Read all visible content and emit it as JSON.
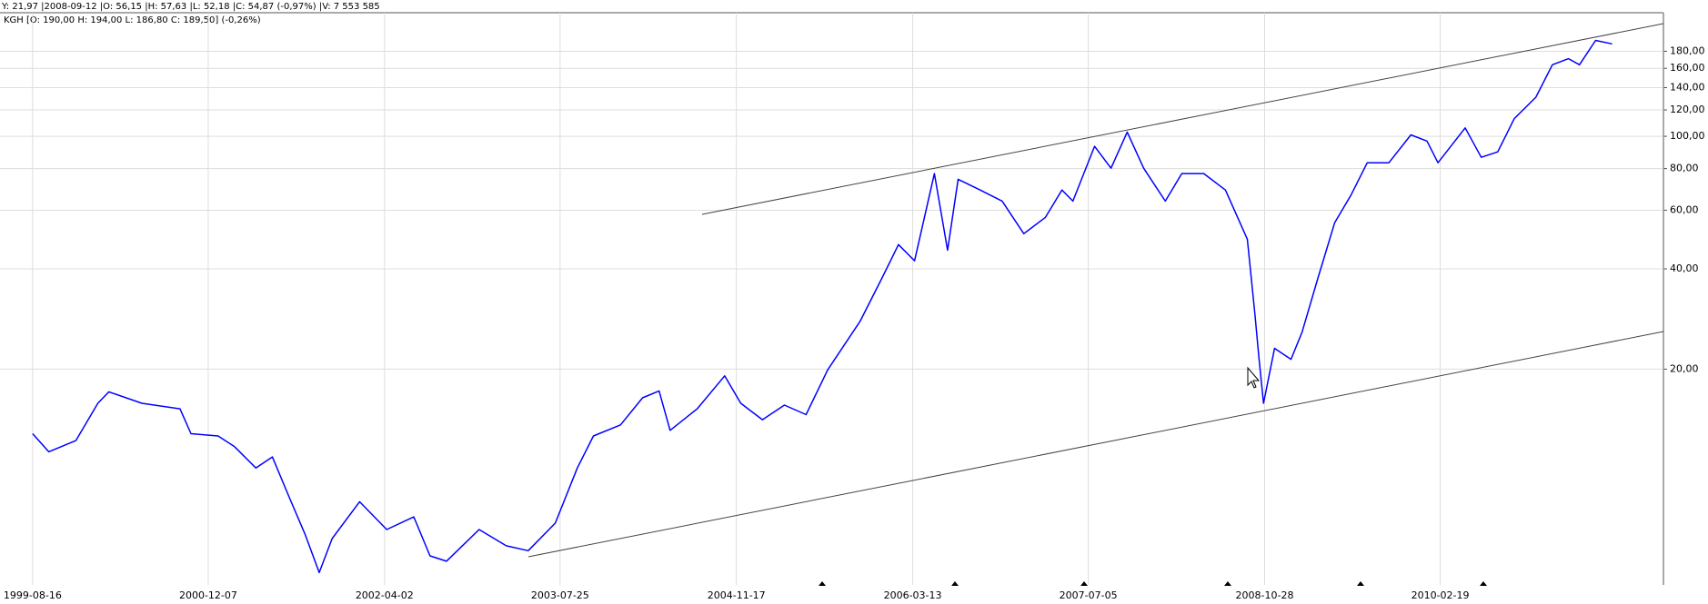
{
  "header": {
    "cursor_info": "Y: 21,97 |2008-09-12 |O: 56,15 |H: 57,63 |L: 52,18 |C: 54,87 (-0,97%) |V: 7 553 585",
    "quote": "KGH [O: 190,00  H: 194,00  L: 186,80  C: 189,50] (-0,26%)"
  },
  "chart_data": {
    "type": "line",
    "yscale": "log",
    "grid": true,
    "color": "#0000ff",
    "x": [
      "1999-08-16",
      "1999-09-29",
      "1999-12-12",
      "2000-02-10",
      "2000-03-11",
      "2000-06-09",
      "2000-09-21",
      "2000-10-21",
      "2001-01-03",
      "2001-02-17",
      "2001-04-16",
      "2001-05-31",
      "2001-07-15",
      "2001-08-28",
      "2001-10-06",
      "2001-11-10",
      "2002-01-24",
      "2002-04-08",
      "2002-06-21",
      "2002-08-04",
      "2002-09-18",
      "2002-12-16",
      "2003-02-28",
      "2003-04-29",
      "2003-07-12",
      "2003-09-10",
      "2003-10-24",
      "2004-01-06",
      "2004-03-06",
      "2004-04-20",
      "2004-05-20",
      "2004-08-02",
      "2004-10-16",
      "2004-11-29",
      "2005-01-27",
      "2005-03-28",
      "2005-05-26",
      "2005-07-24",
      "2005-10-21",
      "2005-12-20",
      "2006-02-02",
      "2006-03-18",
      "2006-05-11",
      "2006-06-16",
      "2006-07-15",
      "2006-09-13",
      "2006-11-12",
      "2007-01-10",
      "2007-03-10",
      "2007-04-24",
      "2007-05-24",
      "2007-07-22",
      "2007-09-05",
      "2007-10-19",
      "2007-12-03",
      "2008-01-31",
      "2008-03-16",
      "2008-05-15",
      "2008-07-13",
      "2008-09-11",
      "2008-10-02",
      "2008-10-13",
      "2008-10-25",
      "2008-11-24",
      "2009-01-08",
      "2009-02-07",
      "2009-03-23",
      "2009-05-07",
      "2009-06-20",
      "2009-08-04",
      "2009-10-02",
      "2009-12-01",
      "2010-01-14",
      "2010-02-13",
      "2010-04-28",
      "2010-06-11",
      "2010-07-26",
      "2010-09-09",
      "2010-11-07",
      "2010-12-22",
      "2011-02-04",
      "2011-03-06",
      "2011-04-19",
      "2011-06-03"
    ],
    "values": [
      12.8,
      11.3,
      12.2,
      15.8,
      17.1,
      15.8,
      15.2,
      12.8,
      12.6,
      11.7,
      10.1,
      10.9,
      8.3,
      6.4,
      4.9,
      6.2,
      8.0,
      6.6,
      7.2,
      5.5,
      5.3,
      6.6,
      5.9,
      5.7,
      6.9,
      10.1,
      12.6,
      13.6,
      16.4,
      17.2,
      13.1,
      15.2,
      19.1,
      15.8,
      14.1,
      15.6,
      14.6,
      19.9,
      27.9,
      37.7,
      47.3,
      42.3,
      77.3,
      45.5,
      74.3,
      69.0,
      63.9,
      51.0,
      57.1,
      69.0,
      63.9,
      93.3,
      80.2,
      103,
      80.2,
      63.9,
      77.3,
      77.3,
      69.0,
      49.1,
      28.9,
      21.4,
      15.8,
      23.1,
      21.4,
      25.8,
      37.7,
      55.0,
      66.4,
      83.3,
      83.3,
      101,
      96.8,
      83.3,
      106,
      86.5,
      89.8,
      113,
      131,
      164,
      171,
      164,
      194,
      189.5
    ],
    "xlim": [
      "1999-05-19",
      "2011-10-21"
    ],
    "xticks": [
      "1999-08-16",
      "2000-12-07",
      "2002-04-02",
      "2003-07-25",
      "2004-11-17",
      "2006-03-13",
      "2007-07-05",
      "2008-10-28",
      "2010-02-19"
    ],
    "ylim": [
      4.5,
      235
    ],
    "yticks": [
      {
        "value": 20,
        "label": "20,00"
      },
      {
        "value": 40,
        "label": "40,00"
      },
      {
        "value": 60,
        "label": "60,00"
      },
      {
        "value": 80,
        "label": "80,00"
      },
      {
        "value": 100,
        "label": "100,00"
      },
      {
        "value": 120,
        "label": "120,00"
      },
      {
        "value": 140,
        "label": "140,00"
      },
      {
        "value": 160,
        "label": "160,00"
      },
      {
        "value": 180,
        "label": "180,00"
      }
    ]
  }
}
